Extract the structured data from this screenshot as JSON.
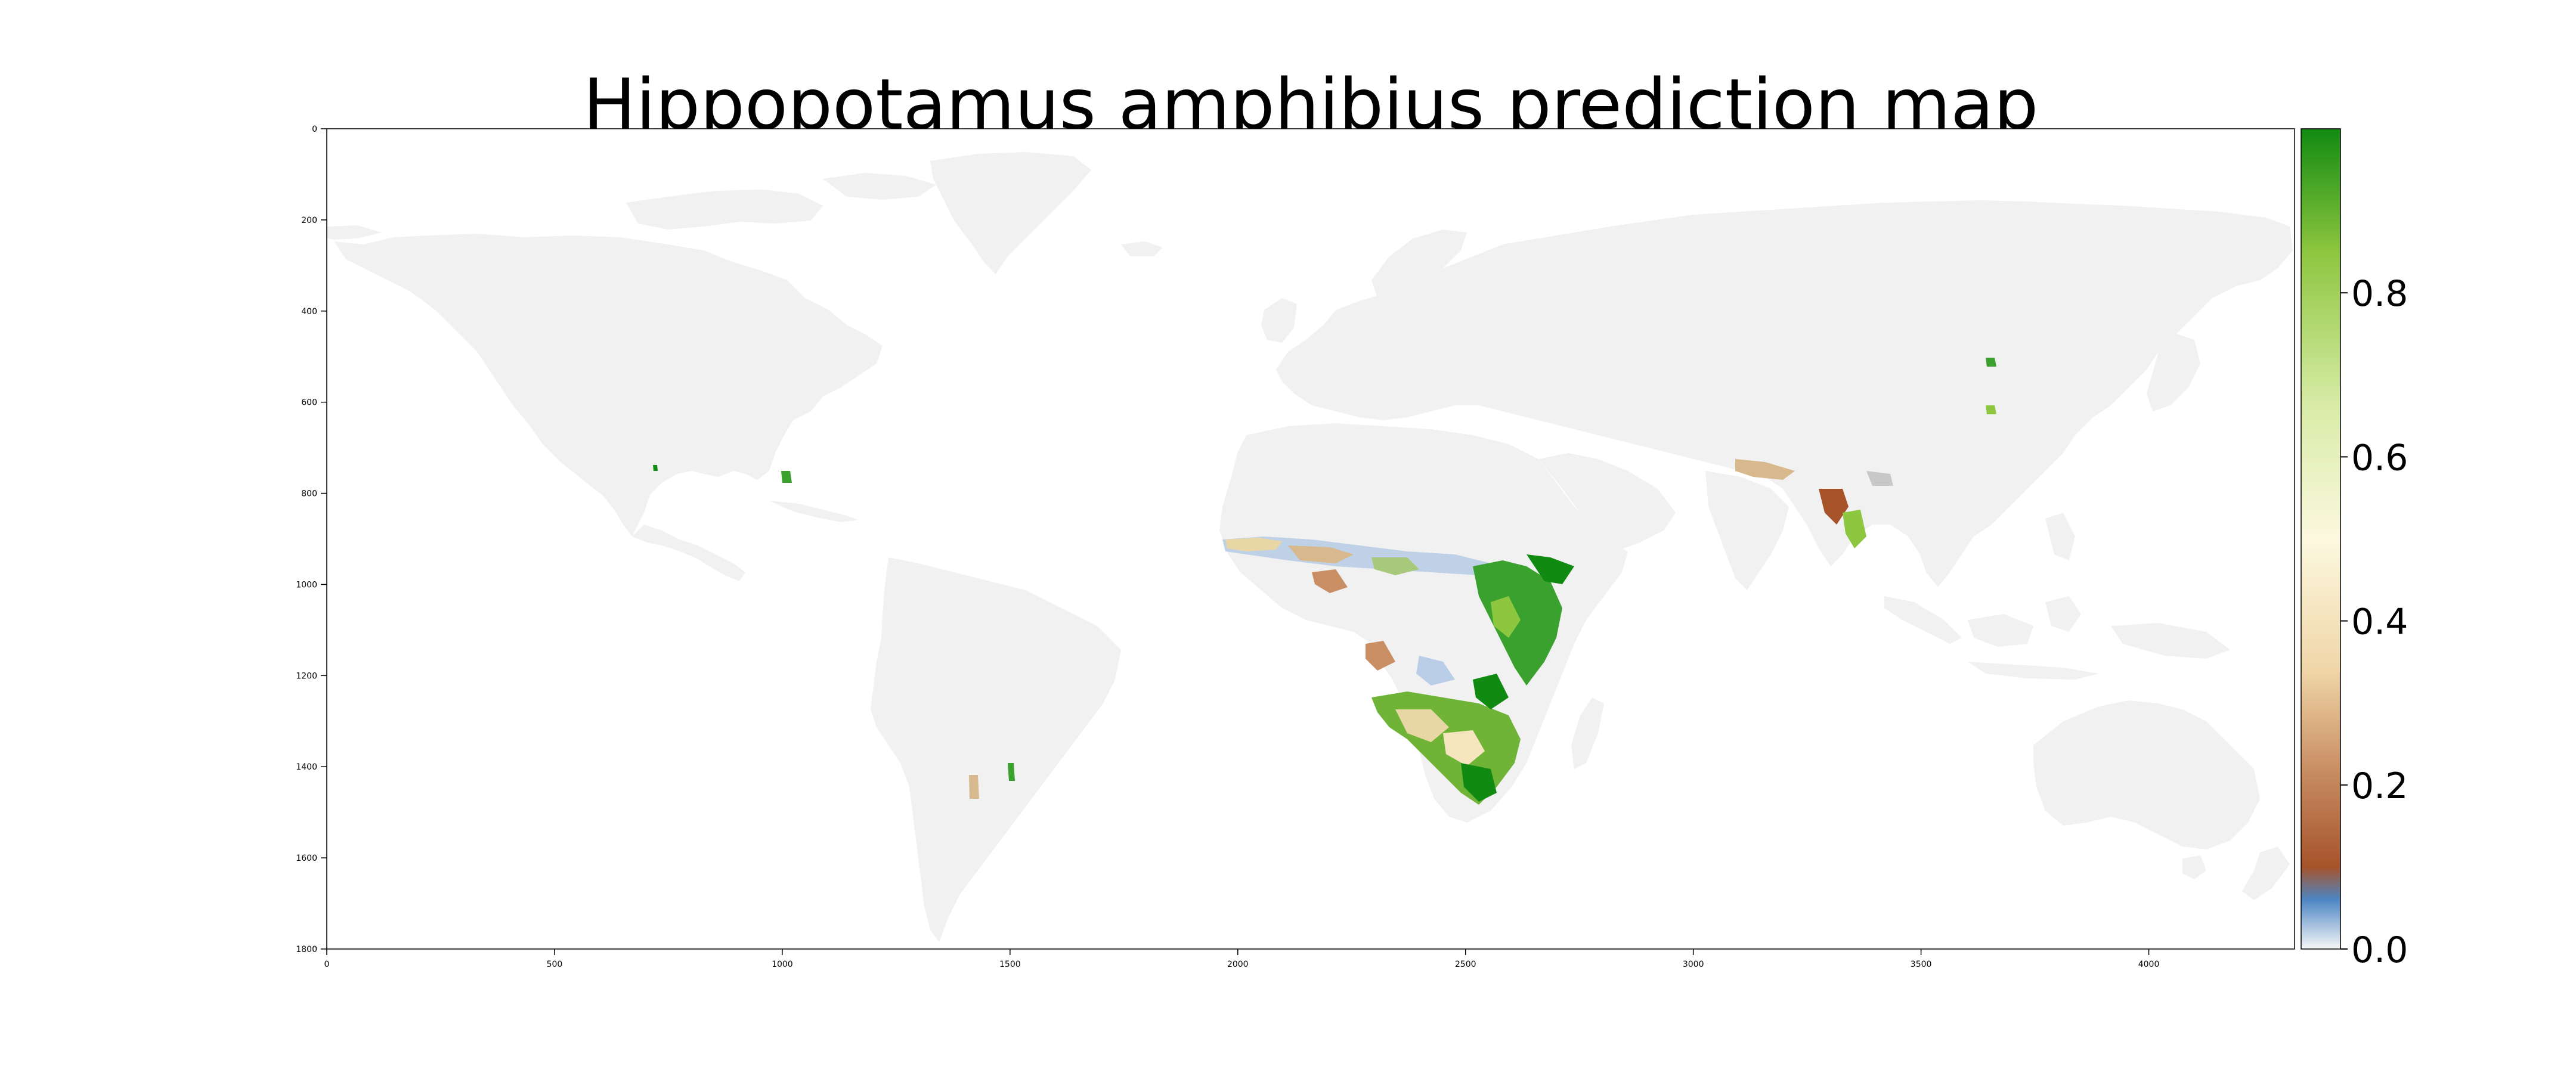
{
  "title": "Hippopotamus amphibius prediction map",
  "map": {
    "x_axis_ticks": [
      "0",
      "500",
      "1000",
      "1500",
      "2000",
      "2500",
      "3000",
      "3500",
      "4000"
    ],
    "y_axis_ticks": [
      "0",
      "200",
      "400",
      "600",
      "800",
      "1000",
      "1200",
      "1400",
      "1600",
      "1800"
    ],
    "x_range": [
      0,
      4320
    ],
    "y_range": [
      0,
      1800
    ],
    "land_color": "#f1f1f1",
    "frame_color": "#000000"
  },
  "colorbar": {
    "ticks": [
      "0.0",
      "0.2",
      "0.4",
      "0.6",
      "0.8"
    ],
    "range": [
      0,
      1
    ],
    "stops": [
      "#f7f7f7",
      "#4d86c4",
      "#a6532a",
      "#d2a07a",
      "#f5e6c0",
      "#fcf9e0",
      "#c8e39a",
      "#8dc63f",
      "#118a11"
    ]
  }
}
